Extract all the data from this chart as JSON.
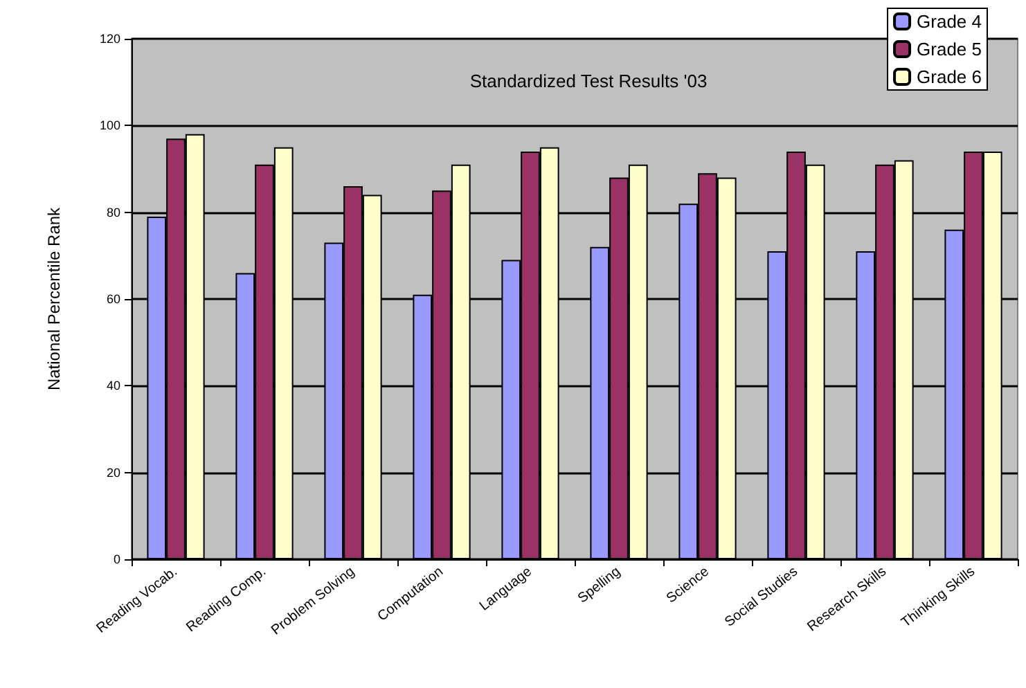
{
  "chart_data": {
    "type": "bar",
    "title": "Standardized Test Results '03",
    "ylabel": "National Percentile Rank",
    "categories": [
      "Reading Vocab.",
      "Reading Comp.",
      "Problem Solving",
      "Computation",
      "Language",
      "Spelling",
      "Science",
      "Social Studies",
      "Research Skills",
      "Thinking Skills"
    ],
    "series": [
      {
        "name": "Grade 4",
        "color": "#9999ff",
        "values": [
          79,
          66,
          73,
          61,
          69,
          72,
          82,
          71,
          71,
          76
        ]
      },
      {
        "name": "Grade 5",
        "color": "#993366",
        "values": [
          97,
          91,
          86,
          85,
          94,
          88,
          89,
          94,
          91,
          94
        ]
      },
      {
        "name": "Grade 6",
        "color": "#ffffcc",
        "values": [
          98,
          95,
          84,
          91,
          95,
          91,
          88,
          91,
          92,
          94
        ]
      }
    ],
    "ylim": [
      0,
      120
    ],
    "yticks": [
      0,
      20,
      40,
      60,
      80,
      100,
      120
    ],
    "grid": "y",
    "legend": "top right"
  }
}
